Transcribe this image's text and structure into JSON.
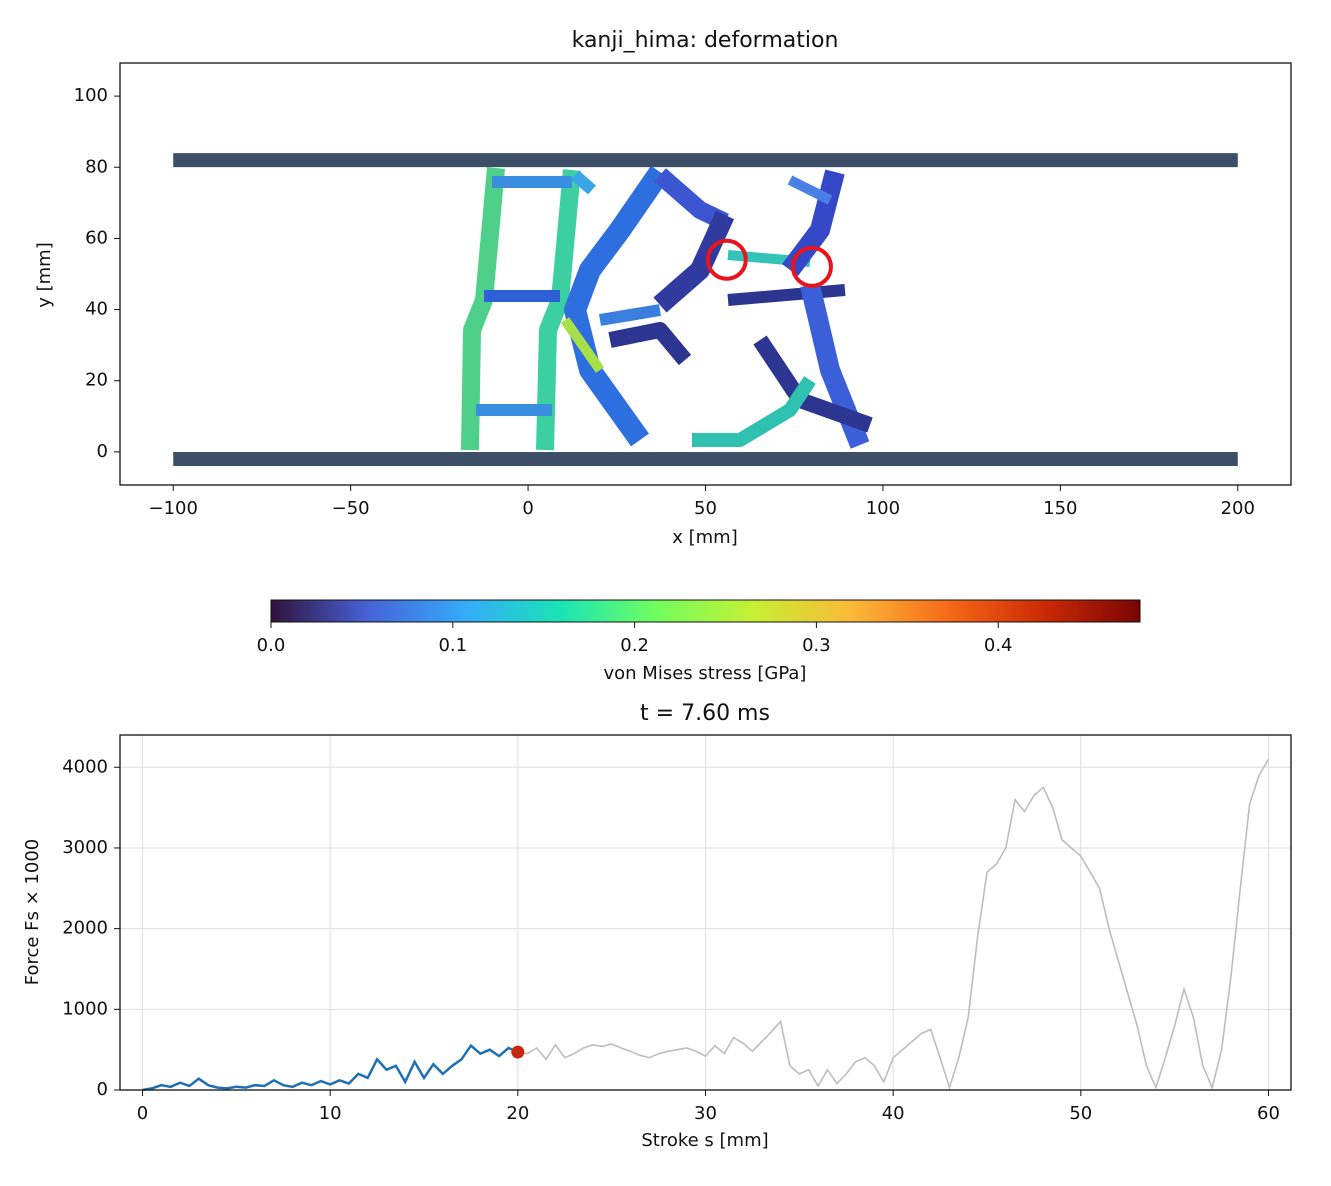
{
  "chart_data": [
    {
      "type": "deformation",
      "title": "kanji_hima: deformation",
      "xlabel": "x [mm]",
      "ylabel": "y [mm]",
      "xlim": [
        -115,
        215
      ],
      "ylim": [
        -9.3,
        109.3
      ],
      "xticks": [
        {
          "value": -100,
          "label": "−100"
        },
        {
          "value": -50,
          "label": "−50"
        },
        0,
        50,
        100,
        150,
        200
      ],
      "yticks": [
        0,
        20,
        40,
        60,
        80,
        100
      ],
      "walls": [
        {
          "x": [
            -100,
            200
          ],
          "y": 82,
          "color": "#3d4f66"
        },
        {
          "x": [
            -100,
            200
          ],
          "y": -2,
          "color": "#3d4f66"
        }
      ],
      "markers": {
        "x": [
          56,
          80
        ],
        "y": [
          54,
          52
        ],
        "color": "#e8141c"
      }
    },
    {
      "type": "colorbar",
      "label": "von Mises stress [GPa]",
      "xlim": [
        0,
        0.478
      ],
      "xticks": [
        {
          "value": 0,
          "label": "0.0"
        },
        {
          "value": 0.1,
          "label": "0.1"
        },
        {
          "value": 0.2,
          "label": "0.2"
        },
        {
          "value": 0.3,
          "label": "0.3"
        },
        {
          "value": 0.4,
          "label": "0.4"
        }
      ],
      "colors": [
        "#30123b",
        "#4662d7",
        "#36aaf9",
        "#1ae4b6",
        "#72fe5e",
        "#c8ef34",
        "#faba39",
        "#f66b19",
        "#ca2a04",
        "#7a0403"
      ]
    },
    {
      "type": "line",
      "title": "t = 7.60 ms",
      "xlabel": "Stroke s [mm]",
      "ylabel": "Force Fs × 1000",
      "xlim": [
        -1.2,
        61.2
      ],
      "ylim": [
        0,
        4400
      ],
      "xticks": [
        0,
        10,
        20,
        30,
        40,
        50,
        60
      ],
      "yticks": [
        0,
        1000,
        2000,
        3000,
        4000
      ],
      "grid": true,
      "x": [
        0,
        0.5,
        1,
        1.5,
        2,
        2.5,
        3,
        3.5,
        4,
        4.5,
        5,
        5.5,
        6,
        6.5,
        7,
        7.5,
        8,
        8.5,
        9,
        9.5,
        10,
        10.5,
        11,
        11.5,
        12,
        12.5,
        13,
        13.5,
        14,
        14.5,
        15,
        15.5,
        16,
        16.5,
        17,
        17.5,
        18,
        18.5,
        19,
        19.5,
        20,
        20.5,
        21,
        21.5,
        22,
        22.5,
        23,
        23.5,
        24,
        24.5,
        25,
        25.5,
        26,
        26.5,
        27,
        27.5,
        28,
        28.5,
        29,
        29.5,
        30,
        30.5,
        31,
        31.5,
        32,
        32.5,
        33,
        33.5,
        34,
        34.5,
        35,
        35.5,
        36,
        36.5,
        37,
        37.5,
        38,
        38.5,
        39,
        39.5,
        40,
        40.5,
        41,
        41.5,
        42,
        42.5,
        43,
        43.5,
        44,
        44.5,
        45,
        45.5,
        46,
        46.5,
        47,
        47.5,
        48,
        48.5,
        49,
        49.5,
        50,
        50.5,
        51,
        51.5,
        52,
        52.5,
        53,
        53.5,
        54,
        54.5,
        55,
        55.5,
        56,
        56.5,
        57,
        57.5,
        58,
        58.5,
        59,
        59.5,
        60
      ],
      "series": [
        {
          "color": "#bdbdbd",
          "values": [
            0,
            20,
            60,
            40,
            90,
            50,
            140,
            60,
            30,
            20,
            40,
            30,
            60,
            50,
            120,
            60,
            40,
            90,
            60,
            110,
            70,
            120,
            80,
            200,
            150,
            380,
            250,
            300,
            100,
            350,
            150,
            320,
            200,
            300,
            380,
            550,
            450,
            500,
            420,
            520,
            470,
            450,
            520,
            380,
            560,
            400,
            450,
            520,
            560,
            540,
            570,
            520,
            480,
            430,
            400,
            450,
            480,
            500,
            520,
            480,
            420,
            550,
            450,
            650,
            580,
            480,
            600,
            720,
            850,
            300,
            200,
            250,
            50,
            250,
            80,
            200,
            350,
            400,
            300,
            100,
            400,
            500,
            600,
            700,
            750,
            400,
            30,
            400,
            900,
            1900,
            2700,
            2800,
            3000,
            3600,
            3450,
            3650,
            3750,
            3500,
            3100,
            3000,
            2900,
            2700,
            2500,
            2000,
            1600,
            1200,
            800,
            300,
            30,
            400,
            800,
            1250,
            900,
            300,
            30,
            500,
            1400,
            2500,
            3550,
            3900,
            4100
          ]
        },
        {
          "color": "#1f6fb4",
          "values": [
            0,
            20,
            60,
            40,
            90,
            50,
            140,
            60,
            30,
            20,
            40,
            30,
            60,
            50,
            120,
            60,
            40,
            90,
            60,
            110,
            70,
            120,
            80,
            200,
            150,
            380,
            250,
            300,
            100,
            350,
            150,
            320,
            200,
            300,
            380,
            550,
            450,
            500,
            420,
            520,
            470,
            null,
            null,
            null,
            null,
            null,
            null,
            null,
            null,
            null,
            null,
            null,
            null,
            null,
            null,
            null,
            null,
            null,
            null,
            null,
            null,
            null,
            null,
            null,
            null,
            null,
            null,
            null,
            null,
            null,
            null,
            null,
            null,
            null,
            null,
            null,
            null,
            null,
            null,
            null,
            null,
            null,
            null,
            null,
            null,
            null,
            null,
            null,
            null,
            null,
            null,
            null,
            null,
            null,
            null,
            null,
            null,
            null,
            null,
            null,
            null,
            null,
            null,
            null,
            null,
            null,
            null,
            null,
            null,
            null,
            null,
            null,
            null,
            null,
            null,
            null,
            null,
            null,
            null,
            null,
            null
          ]
        }
      ],
      "marker": {
        "x": 20,
        "y": 470,
        "color": "#c42a12"
      }
    }
  ]
}
